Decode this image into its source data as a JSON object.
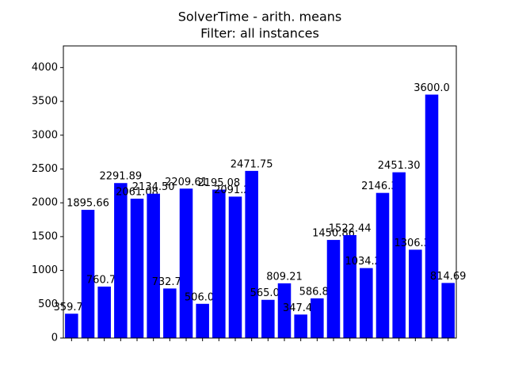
{
  "chart_data": {
    "type": "bar",
    "title": "SolverTime - arith. means",
    "subtitle": "Filter: all instances",
    "categories": [
      null,
      null,
      null,
      null,
      null,
      null,
      null,
      null,
      null,
      null,
      null,
      null,
      null,
      null,
      null,
      null,
      null,
      null,
      null,
      null,
      null,
      null,
      null,
      null
    ],
    "values": [
      359.74,
      1895.66,
      760.71,
      2291.89,
      2061.08,
      2134.5,
      732.71,
      2209.61,
      506.01,
      2195.08,
      2091.24,
      2471.75,
      565.02,
      809.21,
      347.46,
      586.84,
      1450.86,
      1522.44,
      1034.28,
      2146.3,
      2451.3,
      1306.39,
      3600.0,
      814.69
    ],
    "value_labels": [
      "359.74",
      "1895.66",
      "760.71",
      "2291.89",
      "2061.08",
      "2134.50",
      "732.71",
      "2209.61",
      "506.01",
      "2195.08",
      "2091.24",
      "2471.75",
      "565.02",
      "809.21",
      "347.46",
      "586.84",
      "1450.86",
      "1522.44",
      "1034.28",
      "2146.30",
      "2451.30",
      "1306.39",
      "3600.0",
      "814.69"
    ],
    "color": "#0000ff",
    "ylim": [
      0,
      4320
    ],
    "yticks": [
      0,
      500,
      1000,
      1500,
      2000,
      2500,
      3000,
      3500,
      4000
    ]
  }
}
